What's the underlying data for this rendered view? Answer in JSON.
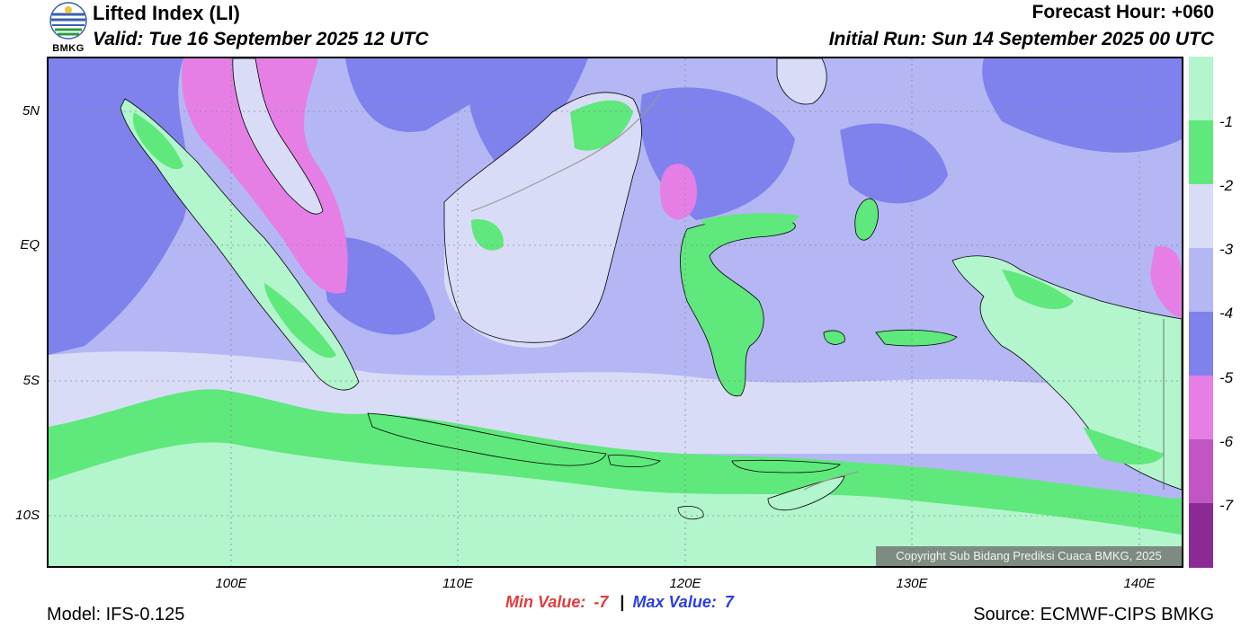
{
  "header": {
    "logo_text": "BMKG",
    "title": "Lifted Index (LI)",
    "valid": "Valid: Tue 16 September 2025 12 UTC",
    "forecast_hour": "Forecast Hour: +060",
    "initial_run": "Initial Run: Sun 14 September 2025 00 UTC"
  },
  "axes": {
    "lat_labels": [
      "5N",
      "EQ",
      "5S",
      "10S"
    ],
    "lon_labels": [
      "100E",
      "110E",
      "120E",
      "130E",
      "140E"
    ]
  },
  "colorbar": {
    "labels": [
      "-1",
      "-2",
      "-3",
      "-4",
      "-5",
      "-6",
      "-7"
    ],
    "colors": [
      "#b3f5cc",
      "#5fe87c",
      "#d9dcf7",
      "#b4b7f4",
      "#7f82ec",
      "#e57fe6",
      "#c255c4",
      "#8c2a95"
    ]
  },
  "stats": {
    "min_label": "Min Value:",
    "min_value": "-7",
    "separator": "|",
    "max_label": "Max Value:",
    "max_value": "7"
  },
  "footer": {
    "model": "Model: IFS-0.125",
    "source": "Source: ECMWF-CIPS BMKG",
    "copyright": "Copyright Sub Bidang Prediksi Cuaca BMKG, 2025"
  },
  "map_colors": {
    "ocean_south": "#b3f5cc",
    "band_green": "#5fe87c",
    "pale_lavender": "#d9dcf7",
    "light_violet": "#b4b7f4",
    "mid_blue": "#7f82ec",
    "magenta": "#e57fe6",
    "coast": "#000000"
  }
}
